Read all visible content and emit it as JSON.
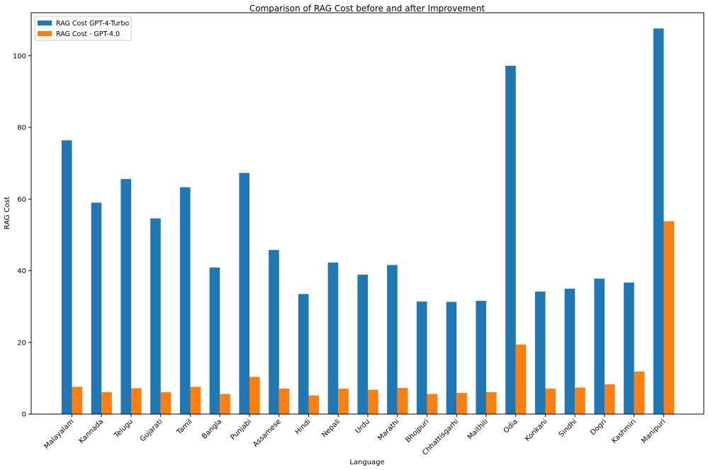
{
  "chart_data": {
    "type": "bar",
    "title": "Comparison of RAG Cost before and after Improvement",
    "xlabel": "Language",
    "ylabel": "RAG Cost",
    "ylim": [
      0,
      112
    ],
    "yticks": [
      0,
      20,
      40,
      60,
      80,
      100
    ],
    "grid": false,
    "legend_position": "top-left",
    "categories": [
      "Malayalam",
      "Kannada",
      "Telugu",
      "Gujarati",
      "Tamil",
      "Bangla",
      "Punjabi",
      "Assamese",
      "Hindi",
      "Nepali",
      "Urdu",
      "Marathi",
      "Bhojpuri",
      "Chhattisgarhi",
      "Maithili",
      "Odia",
      "Konkani",
      "Sindhi",
      "Dogri",
      "Kashmiri",
      "Manipuri"
    ],
    "series": [
      {
        "name": "RAG Cost GPT-4-Turbo",
        "color": "#1f77b4",
        "values": [
          76.4,
          59.0,
          65.6,
          54.6,
          63.3,
          40.9,
          67.3,
          45.8,
          33.5,
          42.3,
          38.9,
          41.6,
          31.4,
          31.3,
          31.6,
          97.2,
          34.2,
          35.0,
          37.8,
          36.7,
          107.6
        ]
      },
      {
        "name": "RAG Cost - GPT-4.0",
        "color": "#ff7f0e",
        "values": [
          7.6,
          6.1,
          7.2,
          6.1,
          7.6,
          5.6,
          10.4,
          7.1,
          5.2,
          7.1,
          6.8,
          7.3,
          5.6,
          5.9,
          6.1,
          19.4,
          7.1,
          7.4,
          8.3,
          11.9,
          53.8
        ]
      }
    ]
  }
}
